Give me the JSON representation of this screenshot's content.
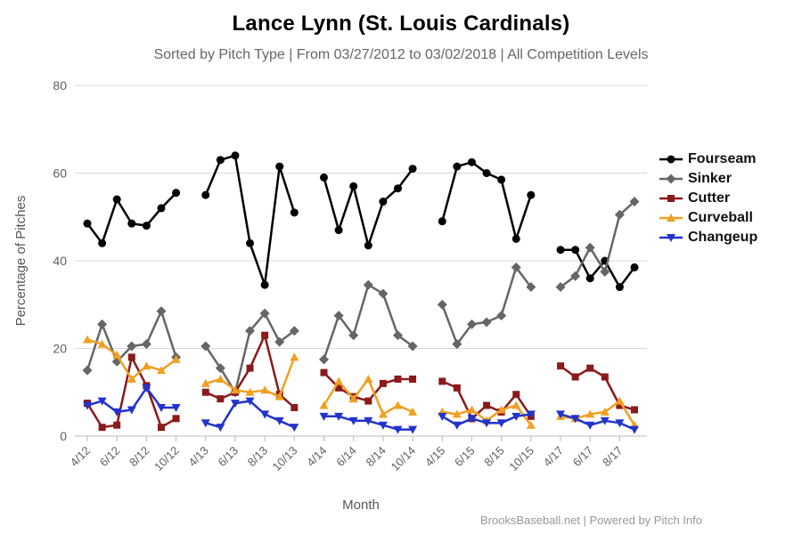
{
  "chart_data": {
    "type": "line",
    "title": "Lance Lynn (St. Louis Cardinals)",
    "subtitle": "Sorted by Pitch Type | From 03/27/2012 to 03/02/2018 | All Competition Levels",
    "xlabel": "Month",
    "ylabel": "Percentage of Pitches",
    "credits": "BrooksBaseball.net | Powered by Pitch Info",
    "ylim": [
      0,
      80
    ],
    "yticks": [
      0,
      20,
      40,
      60,
      80
    ],
    "grid": true,
    "legend_position": "right",
    "x_tick_labels": [
      "4/12",
      "6/12",
      "8/12",
      "10/12",
      "4/13",
      "6/13",
      "8/13",
      "10/13",
      "4/14",
      "6/14",
      "8/14",
      "10/14",
      "4/15",
      "6/15",
      "8/15",
      "10/15",
      "4/17",
      "6/17",
      "8/17"
    ],
    "segments": [
      {
        "season": "2012",
        "months": [
          "4/12",
          "5/12",
          "6/12",
          "7/12",
          "8/12",
          "9/12",
          "10/12"
        ]
      },
      {
        "season": "2013",
        "months": [
          "4/13",
          "5/13",
          "6/13",
          "7/13",
          "8/13",
          "9/13",
          "10/13"
        ]
      },
      {
        "season": "2014",
        "months": [
          "4/14",
          "5/14",
          "6/14",
          "7/14",
          "8/14",
          "9/14",
          "10/14"
        ]
      },
      {
        "season": "2015",
        "months": [
          "4/15",
          "5/15",
          "6/15",
          "7/15",
          "8/15",
          "9/15",
          "10/15"
        ]
      },
      {
        "season": "2017",
        "months": [
          "4/17",
          "5/17",
          "6/17",
          "7/17",
          "8/17",
          "9/17"
        ]
      }
    ],
    "series": [
      {
        "name": "Fourseam",
        "color": "#000000",
        "marker": "circle",
        "values": [
          [
            48.5,
            44,
            54,
            48.5,
            48,
            52,
            55.5
          ],
          [
            55,
            63,
            64,
            44,
            34.5,
            61.5,
            51
          ],
          [
            59,
            47,
            57,
            43.5,
            53.5,
            56.5,
            61
          ],
          [
            49,
            61.5,
            62.5,
            60,
            58.5,
            45,
            55
          ],
          [
            42.5,
            42.5,
            36,
            40,
            34,
            38.5
          ]
        ]
      },
      {
        "name": "Sinker",
        "color": "#666666",
        "marker": "diamond",
        "values": [
          [
            15,
            25.5,
            17,
            20.5,
            21,
            28.5,
            18
          ],
          [
            20.5,
            15.5,
            10,
            24,
            28,
            21.5,
            24
          ],
          [
            17.5,
            27.5,
            23,
            34.5,
            32.5,
            23,
            20.5
          ],
          [
            30,
            21,
            25.5,
            26,
            27.5,
            38.5,
            34
          ],
          [
            34,
            36.5,
            43,
            37.5,
            50.5,
            53.5
          ]
        ]
      },
      {
        "name": "Cutter",
        "color": "#8b1a1a",
        "marker": "square",
        "values": [
          [
            7.5,
            2,
            2.5,
            18,
            11.5,
            2,
            4
          ],
          [
            10,
            8.5,
            10,
            15.5,
            23,
            9.5,
            6.5
          ],
          [
            14.5,
            11,
            9,
            8,
            12,
            13,
            13
          ],
          [
            12.5,
            11,
            4,
            7,
            5.5,
            9.5,
            4.5
          ],
          [
            16,
            13.5,
            15.5,
            13.5,
            7,
            6
          ]
        ]
      },
      {
        "name": "Curveball",
        "color": "#f0a020",
        "marker": "triangle",
        "values": [
          [
            22,
            21,
            18.5,
            13,
            16,
            15,
            17.5
          ],
          [
            12,
            13,
            10.5,
            10,
            10.5,
            9,
            18
          ],
          [
            7,
            12.5,
            8.5,
            13,
            5,
            7,
            5.5
          ],
          [
            5.5,
            5,
            6,
            3.5,
            6,
            7,
            2.5
          ],
          [
            4.5,
            4,
            5,
            5.5,
            8,
            2.5
          ]
        ]
      },
      {
        "name": "Changeup",
        "color": "#2233cc",
        "marker": "triangle-down",
        "values": [
          [
            7,
            8,
            5.5,
            6,
            11,
            6.5,
            6.5
          ],
          [
            3,
            2,
            7.5,
            8,
            5,
            3.5,
            2
          ],
          [
            4.5,
            4.5,
            3.5,
            3.5,
            2.5,
            1.5,
            1.5
          ],
          [
            4.5,
            2.5,
            4,
            3,
            3,
            4.5,
            5
          ],
          [
            5,
            4,
            2.5,
            3.5,
            3,
            1.5
          ]
        ]
      }
    ]
  }
}
